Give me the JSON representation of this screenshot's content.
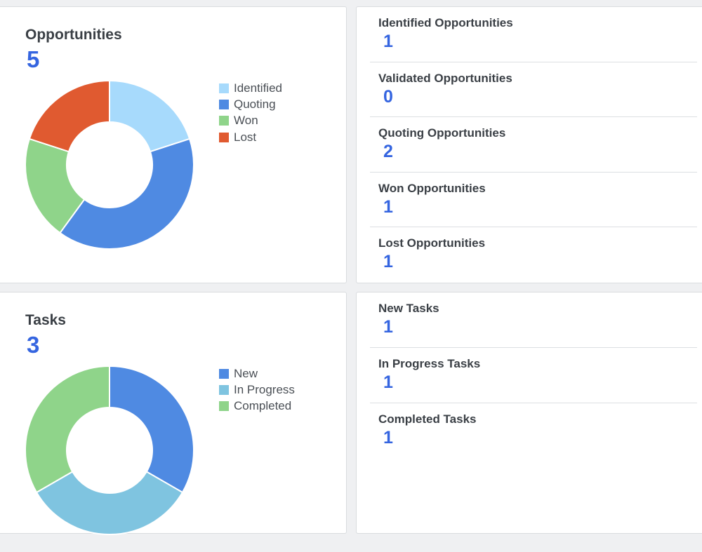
{
  "opportunities": {
    "title": "Opportunities",
    "total": "5",
    "legend": [
      {
        "label": "Identified",
        "color": "#a7dafc"
      },
      {
        "label": "Quoting",
        "color": "#4f8ae2"
      },
      {
        "label": "Won",
        "color": "#8fd48a"
      },
      {
        "label": "Lost",
        "color": "#e05a30"
      }
    ],
    "stats": [
      {
        "label": "Identified Opportunities",
        "value": "1"
      },
      {
        "label": "Validated Opportunities",
        "value": "0"
      },
      {
        "label": "Quoting Opportunities",
        "value": "2"
      },
      {
        "label": "Won Opportunities",
        "value": "1"
      },
      {
        "label": "Lost Opportunities",
        "value": "1"
      }
    ]
  },
  "tasks": {
    "title": "Tasks",
    "total": "3",
    "legend": [
      {
        "label": "New",
        "color": "#4f8ae2"
      },
      {
        "label": "In Progress",
        "color": "#7fc4e0"
      },
      {
        "label": "Completed",
        "color": "#8fd48a"
      }
    ],
    "stats": [
      {
        "label": "New Tasks",
        "value": "1"
      },
      {
        "label": "In Progress Tasks",
        "value": "1"
      },
      {
        "label": "Completed Tasks",
        "value": "1"
      }
    ]
  },
  "chart_data": [
    {
      "type": "pie",
      "categories": [
        "Identified",
        "Quoting",
        "Won",
        "Lost"
      ],
      "values": [
        1,
        2,
        1,
        1
      ],
      "colors": [
        "#a7dafc",
        "#4f8ae2",
        "#8fd48a",
        "#e05a30"
      ],
      "style": "donut",
      "legend_position": "right"
    },
    {
      "type": "pie",
      "categories": [
        "New",
        "In Progress",
        "Completed"
      ],
      "values": [
        1,
        1,
        1
      ],
      "colors": [
        "#4f8ae2",
        "#7fc4e0",
        "#8fd48a"
      ],
      "style": "donut",
      "legend_position": "right"
    }
  ]
}
